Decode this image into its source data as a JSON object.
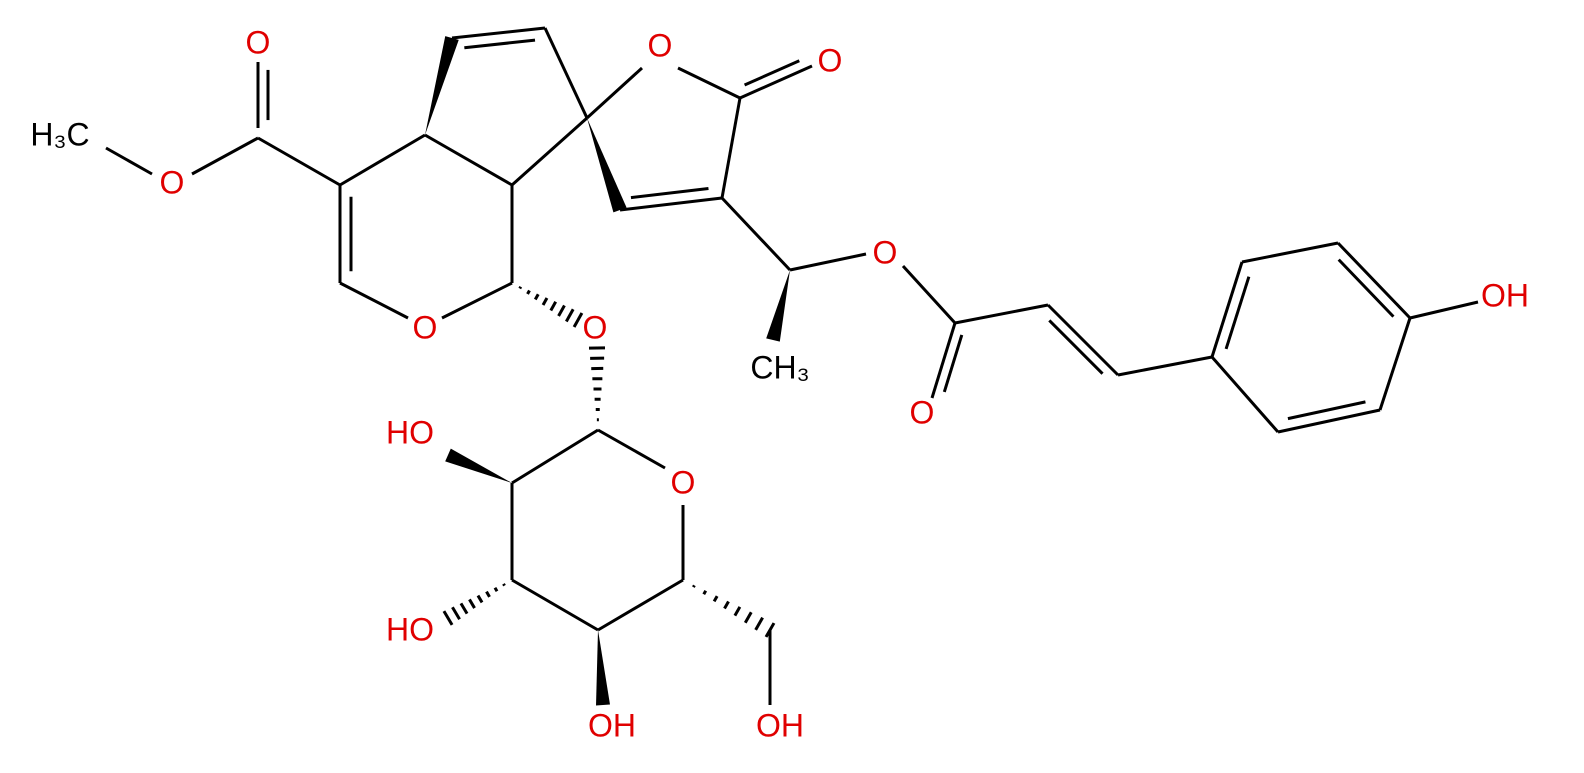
{
  "atoms": [
    "O",
    "H₃C",
    "O",
    "O",
    "O",
    "O",
    "O",
    "O",
    "CH₃",
    "O",
    "OH",
    "HO",
    "O",
    "HO",
    "OH",
    "OH"
  ]
}
